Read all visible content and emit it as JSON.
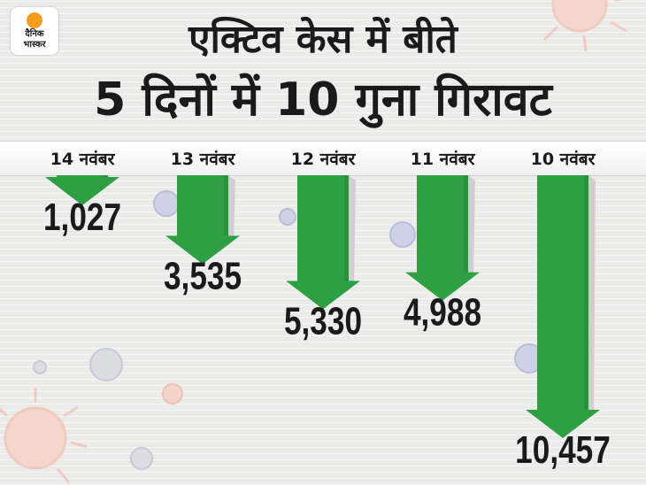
{
  "logo": {
    "line1": "दैनिक",
    "line2": "भास्कर",
    "sun_color": "#f39c1f"
  },
  "title": {
    "line1": "एक्टिव केस में बीते",
    "line2": "5 दिनों में 10 गुना गिरावट"
  },
  "colors": {
    "arrow": "#2ea043",
    "arrow_shade": "#1f7a32",
    "shadow": "#cfcfcf",
    "text": "#1a1a1a"
  },
  "chart_data": {
    "type": "bar",
    "categories": [
      "14 नवंबर",
      "13 नवंबर",
      "12 नवंबर",
      "11 नवंबर",
      "10 नवंबर"
    ],
    "values": [
      1027,
      3535,
      5330,
      4988,
      10457
    ],
    "value_labels": [
      "1,027",
      "3,535",
      "5,330",
      "4,988",
      "10,457"
    ],
    "orientation": "downward-arrows"
  }
}
